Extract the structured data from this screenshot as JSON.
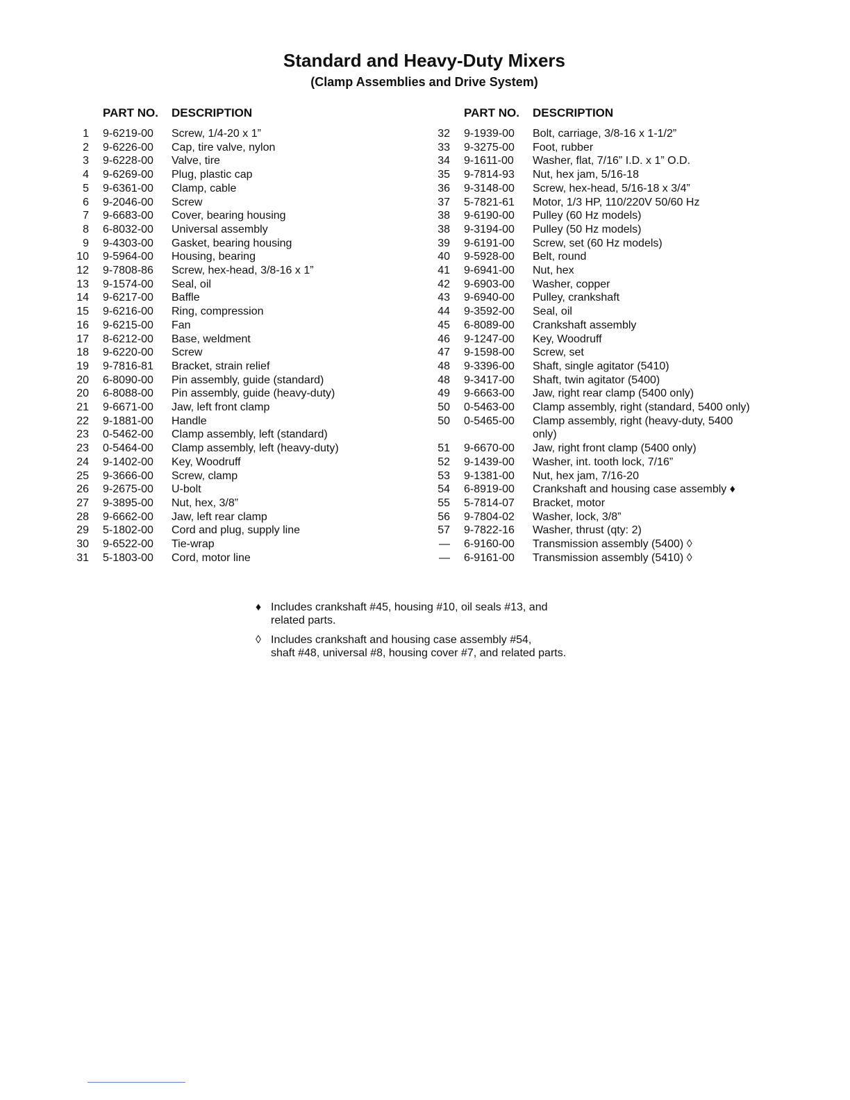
{
  "title": "Standard and Heavy-Duty Mixers",
  "subtitle": "(Clamp Assemblies and Drive System)",
  "headers": {
    "part_no": "PART NO.",
    "description": "DESCRIPTION"
  },
  "left": [
    [
      "1",
      "9-6219-00",
      "Screw, 1/4-20 x 1”"
    ],
    [
      "2",
      "9-6226-00",
      "Cap, tire valve, nylon"
    ],
    [
      "3",
      "9-6228-00",
      "Valve, tire"
    ],
    [
      "4",
      "9-6269-00",
      "Plug, plastic cap"
    ],
    [
      "5",
      "9-6361-00",
      "Clamp, cable"
    ],
    [
      "6",
      "9-2046-00",
      "Screw"
    ],
    [
      "7",
      "9-6683-00",
      "Cover, bearing housing"
    ],
    [
      "8",
      "6-8032-00",
      "Universal assembly"
    ],
    [
      "9",
      "9-4303-00",
      "Gasket, bearing housing"
    ],
    [
      "10",
      "9-5964-00",
      "Housing, bearing"
    ],
    [
      "12",
      "9-7808-86",
      "Screw, hex-head, 3/8-16 x 1”"
    ],
    [
      "13",
      "9-1574-00",
      "Seal, oil"
    ],
    [
      "14",
      "9-6217-00",
      "Baffle"
    ],
    [
      "15",
      "9-6216-00",
      "Ring, compression"
    ],
    [
      "16",
      "9-6215-00",
      "Fan"
    ],
    [
      "17",
      "8-6212-00",
      "Base, weldment"
    ],
    [
      "18",
      "9-6220-00",
      "Screw"
    ],
    [
      "19",
      "9-7816-81",
      "Bracket, strain relief"
    ],
    [
      "20",
      "6-8090-00",
      "Pin assembly, guide (standard)"
    ],
    [
      "20",
      "6-8088-00",
      "Pin assembly, guide (heavy-duty)"
    ],
    [
      "21",
      "9-6671-00",
      "Jaw, left front clamp"
    ],
    [
      "22",
      "9-1881-00",
      "Handle"
    ],
    [
      "23",
      "0-5462-00",
      "Clamp assembly, left (standard)"
    ],
    [
      "23",
      "0-5464-00",
      "Clamp assembly, left (heavy-duty)"
    ],
    [
      "24",
      "9-1402-00",
      "Key, Woodruff"
    ],
    [
      "25",
      "9-3666-00",
      "Screw, clamp"
    ],
    [
      "26",
      "9-2675-00",
      "U-bolt"
    ],
    [
      "27",
      "9-3895-00",
      "Nut, hex, 3/8”"
    ],
    [
      "28",
      "9-6662-00",
      "Jaw, left rear clamp"
    ],
    [
      "29",
      "5-1802-00",
      "Cord and plug, supply line"
    ],
    [
      "30",
      "9-6522-00",
      "Tie-wrap"
    ],
    [
      "31",
      "5-1803-00",
      "Cord, motor line"
    ]
  ],
  "right": [
    [
      "32",
      "9-1939-00",
      "Bolt, carriage, 3/8-16 x 1-1/2”"
    ],
    [
      "33",
      "9-3275-00",
      "Foot, rubber"
    ],
    [
      "34",
      "9-1611-00",
      "Washer, flat, 7/16” I.D. x 1” O.D."
    ],
    [
      "35",
      "9-7814-93",
      "Nut, hex jam, 5/16-18"
    ],
    [
      "36",
      "9-3148-00",
      "Screw, hex-head, 5/16-18 x 3/4”"
    ],
    [
      "37",
      "5-7821-61",
      "Motor, 1/3 HP, 110/220V 50/60 Hz"
    ],
    [
      "38",
      "9-6190-00",
      "Pulley (60 Hz models)"
    ],
    [
      "38",
      "9-3194-00",
      "Pulley (50 Hz models)"
    ],
    [
      "39",
      "9-6191-00",
      "Screw, set (60 Hz models)"
    ],
    [
      "40",
      "9-5928-00",
      "Belt, round"
    ],
    [
      "41",
      "9-6941-00",
      "Nut, hex"
    ],
    [
      "42",
      "9-6903-00",
      "Washer, copper"
    ],
    [
      "43",
      "9-6940-00",
      "Pulley, crankshaft"
    ],
    [
      "44",
      "9-3592-00",
      "Seal, oil"
    ],
    [
      "45",
      "6-8089-00",
      "Crankshaft assembly"
    ],
    [
      "46",
      "9-1247-00",
      "Key, Woodruff"
    ],
    [
      "47",
      "9-1598-00",
      "Screw, set"
    ],
    [
      "48",
      "9-3396-00",
      "Shaft, single agitator (5410)"
    ],
    [
      "48",
      "9-3417-00",
      "Shaft, twin agitator (5400)"
    ],
    [
      "49",
      "9-6663-00",
      "Jaw, right rear clamp (5400 only)"
    ],
    [
      "50",
      "0-5463-00",
      "Clamp assembly, right (standard, 5400 only)"
    ],
    [
      "50",
      "0-5465-00",
      "Clamp assembly, right (heavy-duty, 5400\nonly)"
    ],
    [
      "51",
      "9-6670-00",
      "Jaw, right front clamp (5400 only)"
    ],
    [
      "52",
      "9-1439-00",
      "Washer, int. tooth lock, 7/16”"
    ],
    [
      "53",
      "9-1381-00",
      "Nut, hex jam, 7/16-20"
    ],
    [
      "54",
      "6-8919-00",
      "Crankshaft and housing case assembly  ♦"
    ],
    [
      "55",
      "5-7814-07",
      "Bracket, motor"
    ],
    [
      "56",
      "9-7804-02",
      "Washer, lock, 3/8”"
    ],
    [
      "57",
      "9-7822-16",
      "Washer, thrust (qty: 2)"
    ],
    [
      "—",
      "6-9160-00",
      "Transmission assembly (5400) ◊"
    ],
    [
      "—",
      "6-9161-00",
      "Transmission assembly (5410) ◊"
    ]
  ],
  "notes": [
    {
      "symbol": "♦",
      "text": "Includes crankshaft #45, housing #10, oil seals #13, and\nrelated parts."
    },
    {
      "symbol": "◊",
      "text": "Includes crankshaft and housing case assembly #54,\nshaft #48, universal #8, housing cover #7, and related parts."
    }
  ]
}
